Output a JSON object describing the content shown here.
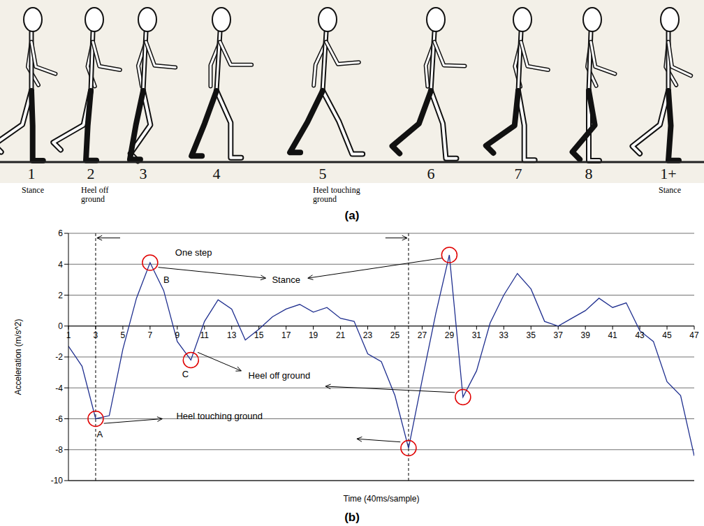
{
  "illustration": {
    "panel_label": "(a)",
    "frames": [
      {
        "label": "1",
        "caption": "Stance"
      },
      {
        "label": "2",
        "caption": "Heel off ground"
      },
      {
        "label": "3"
      },
      {
        "label": "4"
      },
      {
        "label": "5",
        "caption": "Heel touching ground"
      },
      {
        "label": "6"
      },
      {
        "label": "7"
      },
      {
        "label": "8"
      },
      {
        "label": "1+",
        "caption": "Stance"
      }
    ]
  },
  "chart_data": {
    "type": "line",
    "panel_label": "(b)",
    "x_label": "Time (40ms/sample)",
    "y_label": "Acceleration (m/s^2)",
    "x": [
      1,
      2,
      3,
      4,
      5,
      6,
      7,
      8,
      9,
      10,
      11,
      12,
      13,
      14,
      15,
      16,
      17,
      18,
      19,
      20,
      21,
      22,
      23,
      24,
      25,
      26,
      27,
      28,
      29,
      30,
      31,
      32,
      33,
      34,
      35,
      36,
      37,
      38,
      39,
      40,
      41,
      42,
      43,
      44,
      45,
      46,
      47
    ],
    "values": [
      -1.3,
      -2.6,
      -6.0,
      -5.8,
      -1.5,
      1.8,
      4.1,
      2.3,
      -1.0,
      -2.2,
      0.3,
      1.7,
      1.1,
      -0.9,
      -0.2,
      0.6,
      1.1,
      1.4,
      0.9,
      1.2,
      0.5,
      0.3,
      -1.8,
      -2.3,
      -4.5,
      -7.9,
      -3.5,
      0.8,
      4.6,
      -4.6,
      -2.9,
      0.2,
      2.0,
      3.4,
      2.4,
      0.3,
      0.0,
      0.5,
      1.0,
      1.8,
      1.2,
      1.5,
      -0.3,
      -1.0,
      -3.6,
      -4.5,
      -8.4
    ],
    "color": "#1f2f8f",
    "xlim": [
      1,
      47
    ],
    "xticks": [
      1,
      3,
      5,
      7,
      9,
      11,
      13,
      15,
      17,
      19,
      21,
      23,
      25,
      27,
      29,
      31,
      33,
      35,
      37,
      39,
      41,
      43,
      45,
      47
    ],
    "ylim": [
      -10,
      6
    ],
    "yticks": [
      -10,
      -8,
      -6,
      -4,
      -2,
      0,
      2,
      4,
      6
    ],
    "grid": true,
    "annotations": [
      "One step",
      "Stance",
      "Heel off ground",
      "Heel touching ground",
      "A",
      "B",
      "C"
    ],
    "circled_x": [
      3,
      7,
      10,
      26,
      29,
      30
    ],
    "step_x": [
      3,
      26
    ]
  }
}
